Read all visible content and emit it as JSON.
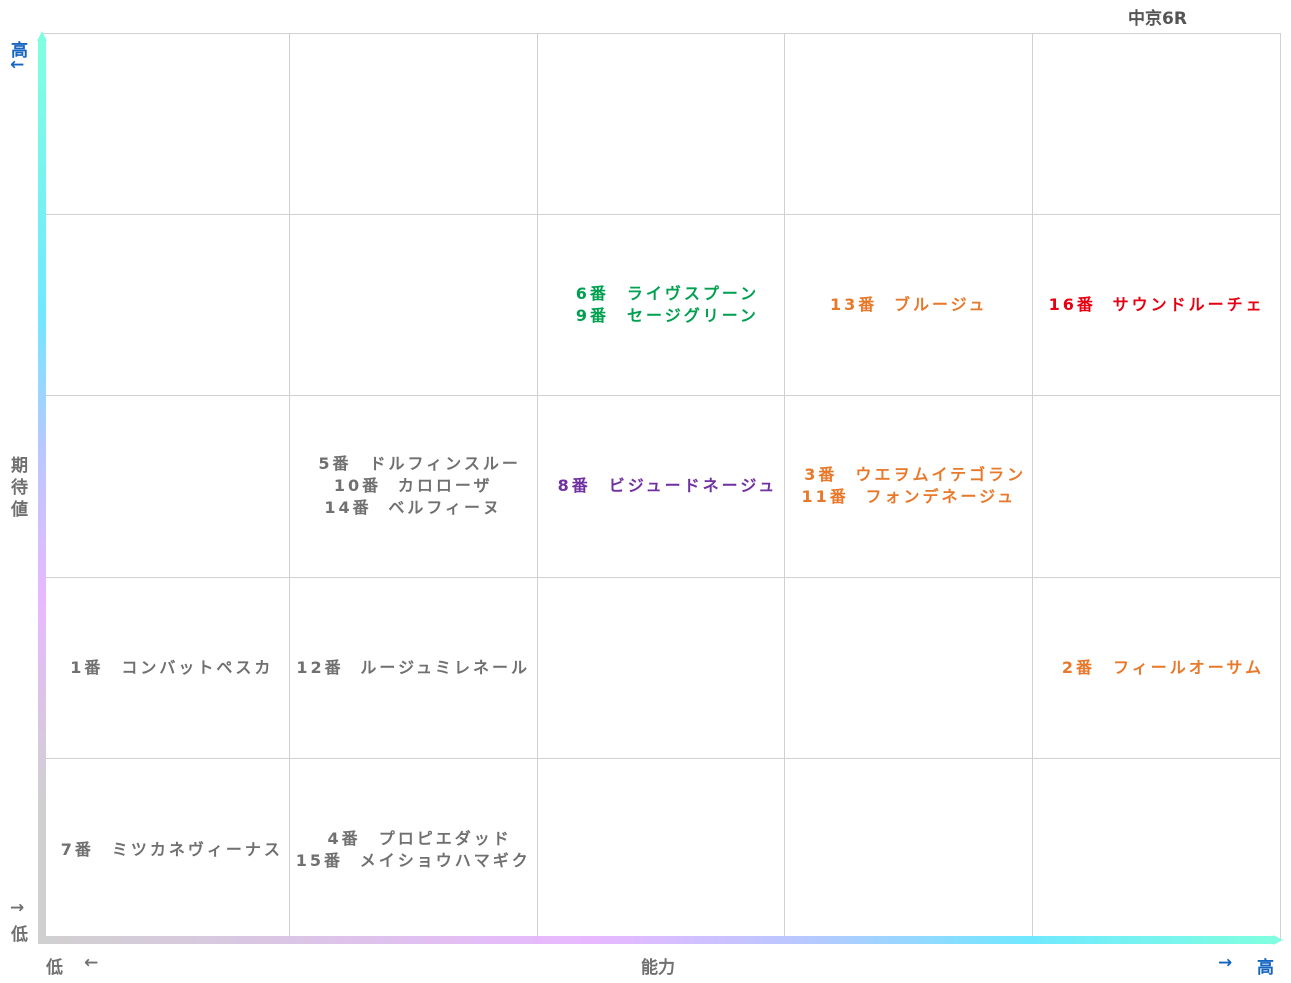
{
  "header": {
    "title": "中京6R"
  },
  "axes": {
    "y_high": "高",
    "y_high_arrow": "←",
    "y_label": "期待値",
    "y_low_arrow": "→",
    "y_low": "低",
    "x_low": "低",
    "x_low_arrow": "←",
    "x_label": "能力",
    "x_high_arrow": "→",
    "x_high": "高"
  },
  "grid": {
    "rows": [
      [
        null,
        null,
        null,
        null,
        null
      ],
      [
        null,
        null,
        {
          "color": "#00a050",
          "entries": [
            {
              "num": "6番",
              "name": "ライヴスプーン"
            },
            {
              "num": "9番",
              "name": "セージグリーン"
            }
          ]
        },
        {
          "color": "#e8782a",
          "entries": [
            {
              "num": "13番",
              "name": "ブルージュ"
            }
          ]
        },
        {
          "color": "#e60012",
          "entries": [
            {
              "num": "16番",
              "name": "サウンドルーチェ"
            }
          ]
        }
      ],
      [
        null,
        {
          "color": "#707070",
          "entries": [
            {
              "num": "5番",
              "name": "ドルフィンスルー"
            },
            {
              "num": "10番",
              "name": "カロローザ"
            },
            {
              "num": "14番",
              "name": "ベルフィーヌ"
            }
          ]
        },
        {
          "color": "#7030a0",
          "entries": [
            {
              "num": "8番",
              "name": "ビジュードネージュ"
            }
          ]
        },
        {
          "color": "#e8782a",
          "entries": [
            {
              "num": "3番",
              "name": "ウエヲムイテゴラン"
            },
            {
              "num": "11番",
              "name": "フォンデネージュ"
            }
          ]
        },
        null
      ],
      [
        {
          "color": "#707070",
          "entries": [
            {
              "num": "1番",
              "name": "コンバットペスカ"
            }
          ]
        },
        {
          "color": "#707070",
          "entries": [
            {
              "num": "12番",
              "name": "ルージュミレネール"
            }
          ]
        },
        null,
        null,
        {
          "color": "#e8782a",
          "entries": [
            {
              "num": "2番",
              "name": "フィールオーサム"
            }
          ]
        }
      ],
      [
        {
          "color": "#707070",
          "entries": [
            {
              "num": "7番",
              "name": "ミツカネヴィーナス"
            }
          ]
        },
        {
          "color": "#707070",
          "entries": [
            {
              "num": "4番",
              "name": "プロピエダッド"
            },
            {
              "num": "15番",
              "name": "メイショウハマギク"
            }
          ]
        },
        null,
        null,
        null
      ]
    ]
  }
}
